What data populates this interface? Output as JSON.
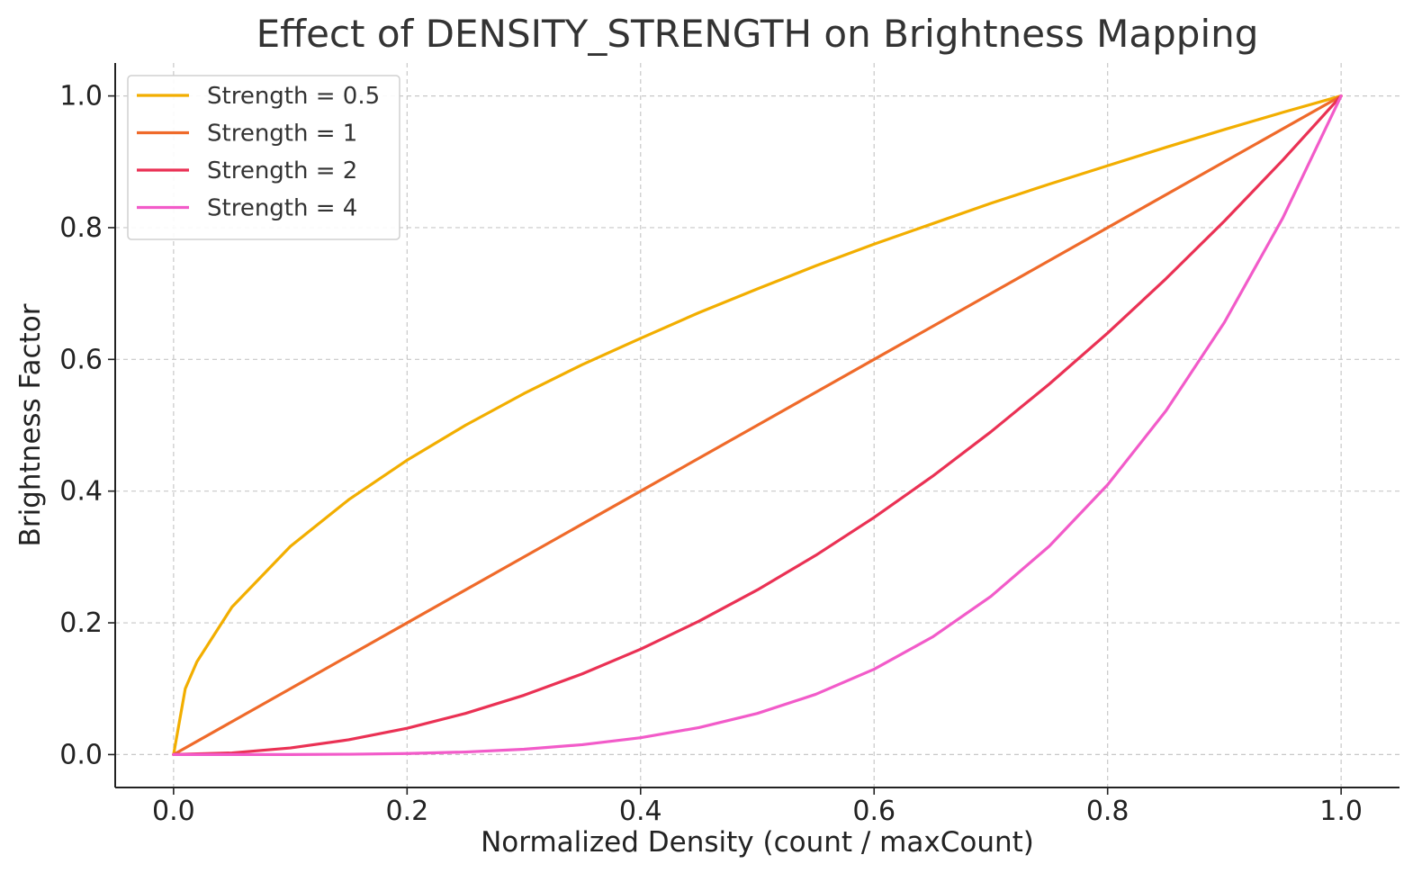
{
  "chart_data": {
    "type": "line",
    "title": "Effect of DENSITY_STRENGTH on Brightness Mapping",
    "xlabel": "Normalized Density (count / maxCount)",
    "ylabel": "Brightness Factor",
    "xlim": [
      -0.05,
      1.05
    ],
    "ylim": [
      -0.05,
      1.05
    ],
    "xticks": [
      0.0,
      0.2,
      0.4,
      0.6,
      0.8,
      1.0
    ],
    "xtick_labels": [
      "0.0",
      "0.2",
      "0.4",
      "0.6",
      "0.8",
      "1.0"
    ],
    "yticks": [
      0.0,
      0.2,
      0.4,
      0.6,
      0.8,
      1.0
    ],
    "ytick_labels": [
      "0.0",
      "0.2",
      "0.4",
      "0.6",
      "0.8",
      "1.0"
    ],
    "grid": true,
    "legend_position": "upper-left",
    "series": [
      {
        "name": "Strength = 0.5",
        "color": "#f2ae00",
        "x": [
          0.0,
          0.01,
          0.02,
          0.05,
          0.1,
          0.15,
          0.2,
          0.25,
          0.3,
          0.35,
          0.4,
          0.45,
          0.5,
          0.55,
          0.6,
          0.65,
          0.7,
          0.75,
          0.8,
          0.85,
          0.9,
          0.95,
          1.0
        ],
        "y": [
          0.0,
          0.1,
          0.141,
          0.224,
          0.316,
          0.387,
          0.447,
          0.5,
          0.548,
          0.592,
          0.632,
          0.671,
          0.707,
          0.742,
          0.775,
          0.806,
          0.837,
          0.866,
          0.894,
          0.922,
          0.949,
          0.975,
          1.0
        ]
      },
      {
        "name": "Strength = 1",
        "color": "#ef6a2a",
        "x": [
          0.0,
          0.1,
          0.2,
          0.3,
          0.4,
          0.5,
          0.6,
          0.7,
          0.8,
          0.9,
          1.0
        ],
        "y": [
          0.0,
          0.1,
          0.2,
          0.3,
          0.4,
          0.5,
          0.6,
          0.7,
          0.8,
          0.9,
          1.0
        ]
      },
      {
        "name": "Strength = 2",
        "color": "#ea3154",
        "x": [
          0.0,
          0.05,
          0.1,
          0.15,
          0.2,
          0.25,
          0.3,
          0.35,
          0.4,
          0.45,
          0.5,
          0.55,
          0.6,
          0.65,
          0.7,
          0.75,
          0.8,
          0.85,
          0.9,
          0.95,
          1.0
        ],
        "y": [
          0.0,
          0.0025,
          0.01,
          0.0225,
          0.04,
          0.0625,
          0.09,
          0.1225,
          0.16,
          0.2025,
          0.25,
          0.3025,
          0.36,
          0.4225,
          0.49,
          0.5625,
          0.64,
          0.7225,
          0.81,
          0.9025,
          1.0
        ]
      },
      {
        "name": "Strength = 4",
        "color": "#f25bc9",
        "x": [
          0.0,
          0.05,
          0.1,
          0.15,
          0.2,
          0.25,
          0.3,
          0.35,
          0.4,
          0.45,
          0.5,
          0.55,
          0.6,
          0.65,
          0.7,
          0.75,
          0.8,
          0.85,
          0.9,
          0.95,
          1.0
        ],
        "y": [
          0.0,
          0.0,
          0.0001,
          0.0005,
          0.0016,
          0.0039,
          0.0081,
          0.015,
          0.0256,
          0.041,
          0.0625,
          0.0915,
          0.1296,
          0.1785,
          0.2401,
          0.3164,
          0.4096,
          0.522,
          0.6561,
          0.8145,
          1.0
        ]
      }
    ]
  }
}
